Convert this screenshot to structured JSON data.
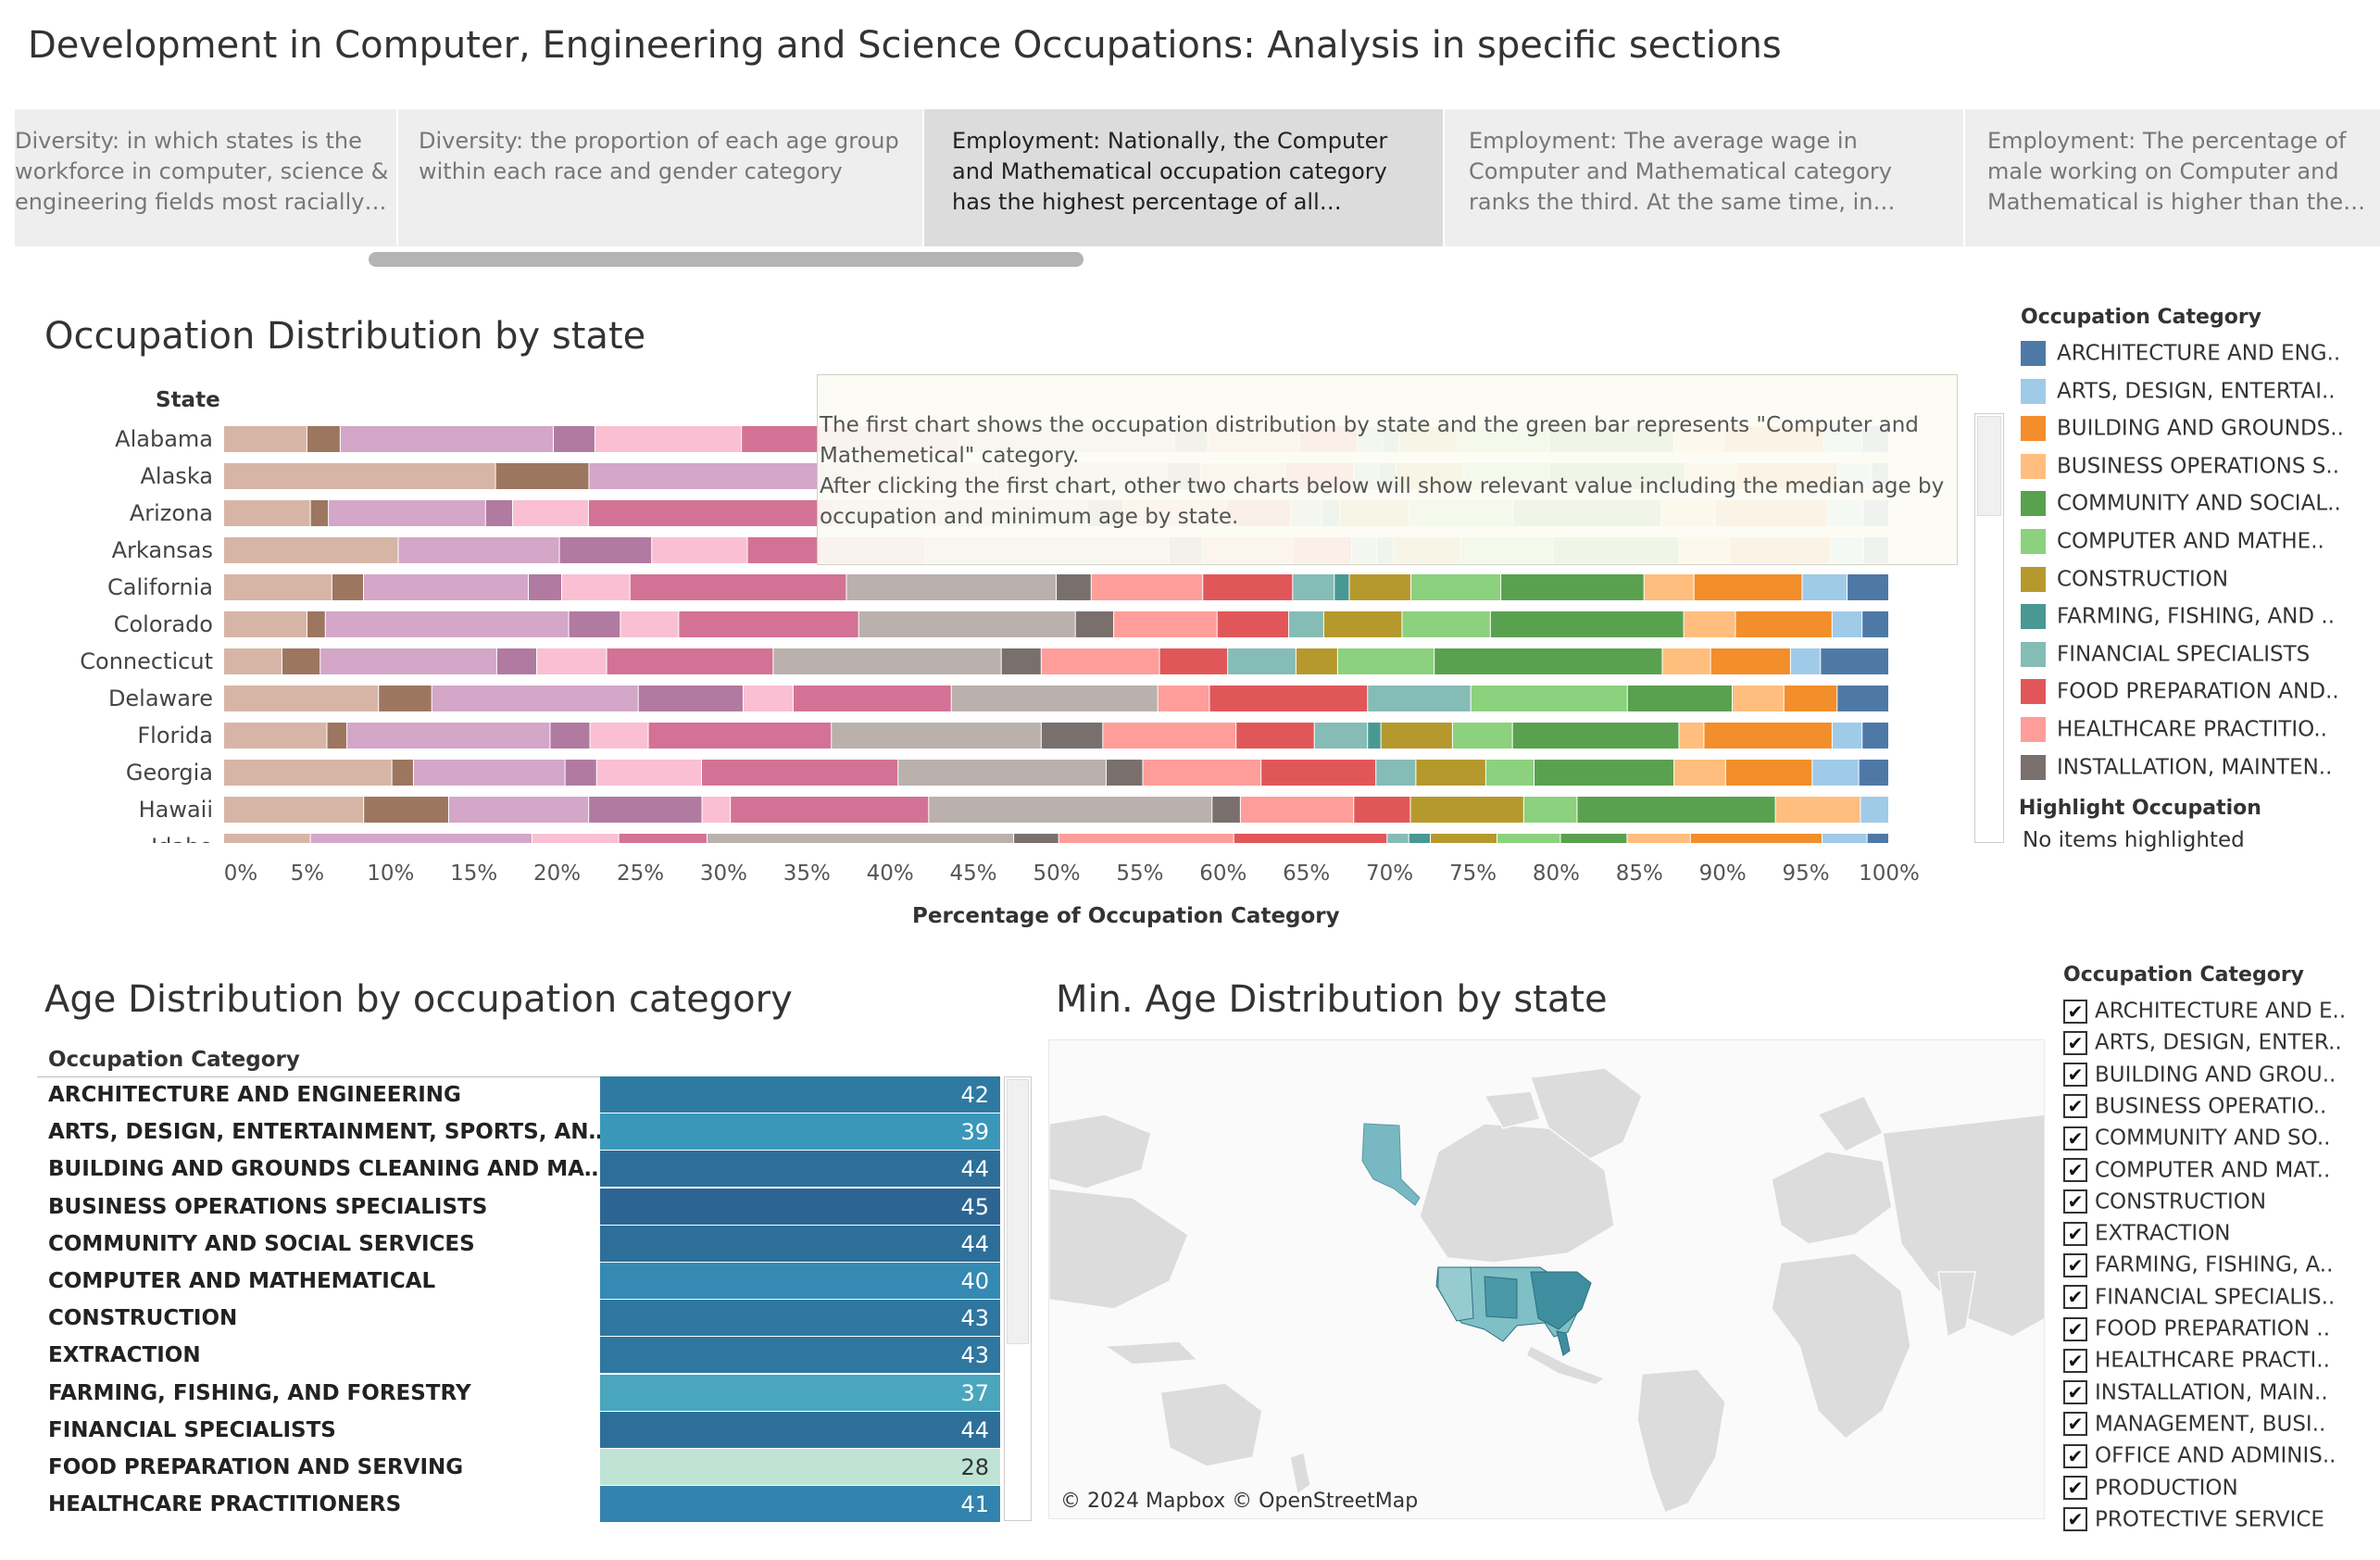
{
  "page_title": "Development in Computer, Engineering and Science Occupations: Analysis in specific sections",
  "tabs": [
    {
      "text": "Diversity: in which states is the workforce in computer, science & engineering fields most racially d..",
      "active": false
    },
    {
      "text": "Diversity: the proportion of each age group within each race and gender category",
      "active": false
    },
    {
      "text": "Employment: Nationally, the Computer and Mathematical occupation category has the highest percentage of all occupations in Del..",
      "active": true
    },
    {
      "text": "Employment:  The average wage in Computer and Mathematical category ranks the third. At the same time, in Computer and Mathema..",
      "active": false
    },
    {
      "text": "Employment: The percentage of male working on Computer and Mathematical is higher than the fem..",
      "active": false
    }
  ],
  "occupation_chart": {
    "title": "Occupation Distribution by state",
    "row_header": "State",
    "x_axis_title": "Percentage of Occupation Category",
    "tooltip": "The first chart shows the occupation distribution by state and the green bar represents \"Computer and Mathemetical\" category.\nAfter clicking the first chart, other two charts below will show relevant value including the median age by occupation  and minimum age by state.",
    "legend_title": "Occupation Category",
    "legend_items": [
      {
        "label": "ARCHITECTURE AND ENG..",
        "color": "#4e79a7"
      },
      {
        "label": "ARTS, DESIGN, ENTERTAI..",
        "color": "#a0cbe8"
      },
      {
        "label": "BUILDING AND GROUNDS..",
        "color": "#f28e2b"
      },
      {
        "label": "BUSINESS OPERATIONS S..",
        "color": "#ffbe7d"
      },
      {
        "label": "COMMUNITY AND SOCIAL..",
        "color": "#59a14f"
      },
      {
        "label": "COMPUTER AND MATHE..",
        "color": "#8cd17d"
      },
      {
        "label": "CONSTRUCTION",
        "color": "#b6992d"
      },
      {
        "label": "FARMING, FISHING, AND ..",
        "color": "#499894"
      },
      {
        "label": "FINANCIAL SPECIALISTS",
        "color": "#86bcb6"
      },
      {
        "label": "FOOD PREPARATION AND..",
        "color": "#e15759"
      },
      {
        "label": "HEALTHCARE PRACTITIO..",
        "color": "#ff9d9a"
      },
      {
        "label": "INSTALLATION, MAINTEN..",
        "color": "#79706e"
      }
    ],
    "highlight_title": "Highlight Occupation",
    "highlight_value": "No items highlighted"
  },
  "chart_data": [
    {
      "type": "bar",
      "orientation": "horizontal-stacked-100",
      "title": "Occupation Distribution by state",
      "ylabel": "State",
      "xlabel": "Percentage of Occupation Category",
      "xlim": [
        0,
        100
      ],
      "x_ticks": [
        "0%",
        "5%",
        "10%",
        "15%",
        "20%",
        "25%",
        "30%",
        "35%",
        "40%",
        "45%",
        "50%",
        "55%",
        "60%",
        "65%",
        "70%",
        "75%",
        "80%",
        "85%",
        "90%",
        "95%",
        "100%"
      ],
      "categories": [
        "Alabama",
        "Alaska",
        "Arizona",
        "Arkansas",
        "California",
        "Colorado",
        "Connecticut",
        "Delaware",
        "Florida",
        "Georgia",
        "Hawaii",
        "Idaho"
      ],
      "segment_colors": [
        "#d7b5a6",
        "#9d7660",
        "#d4a6c8",
        "#b07aa1",
        "#fabfd2",
        "#d37295",
        "#bab0ac",
        "#79706e",
        "#ff9d9a",
        "#e15759",
        "#86bcb6",
        "#499894",
        "#b6992d",
        "#8cd17d",
        "#59a14f",
        "#ffbe7d",
        "#f28e2b",
        "#a0cbe8",
        "#4e79a7"
      ],
      "rows": [
        [
          5.0,
          2.0,
          12.8,
          2.5,
          8.8,
          13.0,
          13.0,
          2.0,
          5.5,
          3.5,
          1.5,
          1.0,
          3.5,
          5.5,
          7.5,
          3.0,
          6.0,
          2.3,
          1.6
        ],
        [
          16.0,
          5.5,
          24.0,
          0,
          0,
          0,
          10.0,
          2.0,
          5.0,
          4.0,
          1.5,
          1.0,
          4.0,
          5.0,
          8.0,
          3.0,
          6.0,
          2.0,
          1.0
        ],
        [
          4.8,
          1.0,
          8.7,
          1.5,
          4.2,
          13.6,
          14.0,
          2.0,
          5.7,
          3.6,
          1.7,
          1.0,
          3.8,
          5.8,
          8.2,
          3.0,
          6.2,
          2.0,
          1.4
        ],
        [
          10.4,
          0,
          9.6,
          5.5,
          5.7,
          10.6,
          14.5,
          2.0,
          5.4,
          3.5,
          1.5,
          1.0,
          4.0,
          5.5,
          7.5,
          3.0,
          6.0,
          2.0,
          1.5
        ],
        [
          6.5,
          1.9,
          9.9,
          2.0,
          4.1,
          13.0,
          12.6,
          2.1,
          6.7,
          5.4,
          2.5,
          0.9,
          3.7,
          5.4,
          8.6,
          3.0,
          6.5,
          2.7,
          2.5
        ],
        [
          5.0,
          1.1,
          14.6,
          3.1,
          3.5,
          10.8,
          13.0,
          2.3,
          6.2,
          4.3,
          2.1,
          0,
          4.7,
          5.3,
          11.6,
          3.1,
          5.8,
          1.8,
          1.6
        ],
        [
          3.5,
          2.3,
          10.6,
          2.4,
          4.2,
          10.0,
          13.7,
          2.4,
          7.1,
          4.1,
          4.1,
          0,
          2.5,
          5.8,
          13.7,
          2.9,
          4.8,
          1.8,
          4.1
        ],
        [
          9.3,
          3.2,
          12.4,
          6.3,
          3.0,
          9.5,
          12.4,
          0,
          3.1,
          9.5,
          6.2,
          0,
          0,
          9.4,
          6.3,
          3.1,
          3.2,
          0,
          3.1
        ],
        [
          6.2,
          1.2,
          12.2,
          2.4,
          3.5,
          11.0,
          12.6,
          3.7,
          8.0,
          4.7,
          3.2,
          0.8,
          4.3,
          3.6,
          10.0,
          1.5,
          7.7,
          1.8,
          1.6
        ],
        [
          10.1,
          1.3,
          9.1,
          1.9,
          6.3,
          11.8,
          12.5,
          2.2,
          7.1,
          6.9,
          2.4,
          0,
          4.2,
          2.9,
          8.4,
          3.1,
          5.2,
          2.8,
          1.8
        ],
        [
          8.4,
          5.1,
          8.4,
          6.8,
          1.7,
          11.9,
          17.0,
          1.7,
          6.8,
          3.4,
          0,
          0,
          6.8,
          3.2,
          11.9,
          5.1,
          0,
          1.7,
          0
        ],
        [
          5.2,
          0,
          13.3,
          0,
          5.2,
          5.3,
          18.4,
          2.7,
          10.5,
          9.2,
          1.3,
          1.3,
          4.0,
          3.8,
          4.0,
          3.8,
          7.9,
          2.7,
          1.3
        ]
      ]
    },
    {
      "type": "table",
      "title": "Age Distribution by occupation category",
      "column_header": "Occupation Category",
      "categories": [
        "ARCHITECTURE AND ENGINEERING",
        "ARTS, DESIGN, ENTERTAINMENT, SPORTS, AND ME..",
        "BUILDING AND GROUNDS CLEANING AND MAINTEN..",
        "BUSINESS OPERATIONS SPECIALISTS",
        "COMMUNITY AND SOCIAL SERVICES",
        "COMPUTER AND MATHEMATICAL",
        "CONSTRUCTION",
        "EXTRACTION",
        "FARMING, FISHING, AND FORESTRY",
        "FINANCIAL SPECIALISTS",
        "FOOD PREPARATION AND SERVING",
        "HEALTHCARE PRACTITIONERS"
      ],
      "values": [
        42,
        39,
        44,
        45,
        44,
        40,
        43,
        43,
        37,
        44,
        28,
        41
      ]
    }
  ],
  "age_table": {
    "title": "Age Distribution by occupation category",
    "column_header": "Occupation Category",
    "rows": [
      {
        "label": "ARCHITECTURE AND ENGINEERING",
        "value": "42",
        "color": "#2f7aa3"
      },
      {
        "label": "ARTS, DESIGN, ENTERTAINMENT, SPORTS, AND ME..",
        "value": "39",
        "color": "#3a97b9"
      },
      {
        "label": "BUILDING AND GROUNDS CLEANING AND MAINTEN..",
        "value": "44",
        "color": "#2e6f9a"
      },
      {
        "label": "BUSINESS OPERATIONS SPECIALISTS",
        "value": "45",
        "color": "#2c6592"
      },
      {
        "label": "COMMUNITY AND SOCIAL SERVICES",
        "value": "44",
        "color": "#2e6f9a"
      },
      {
        "label": "COMPUTER AND MATHEMATICAL",
        "value": "40",
        "color": "#348ab2"
      },
      {
        "label": "CONSTRUCTION",
        "value": "43",
        "color": "#2f76a0"
      },
      {
        "label": "EXTRACTION",
        "value": "43",
        "color": "#2f76a0"
      },
      {
        "label": "FARMING, FISHING, AND FORESTRY",
        "value": "37",
        "color": "#4aa6bd"
      },
      {
        "label": "FINANCIAL SPECIALISTS",
        "value": "44",
        "color": "#2e6f9a"
      },
      {
        "label": "FOOD PREPARATION AND SERVING",
        "value": "28",
        "color": "#bfe4d6"
      },
      {
        "label": "HEALTHCARE PRACTITIONERS",
        "value": "41",
        "color": "#3283ad"
      }
    ]
  },
  "map_panel": {
    "title": "Min. Age Distribution by state",
    "attribution": "© 2024 Mapbox © OpenStreetMap",
    "filter_title": "Occupation Category",
    "filter_items": [
      {
        "label": "ARCHITECTURE AND E..",
        "checked": "✔"
      },
      {
        "label": "ARTS, DESIGN, ENTER..",
        "checked": "✔"
      },
      {
        "label": "BUILDING AND GROU..",
        "checked": "✔"
      },
      {
        "label": "BUSINESS OPERATIO..",
        "checked": "✔"
      },
      {
        "label": "COMMUNITY AND SO..",
        "checked": "✔"
      },
      {
        "label": "COMPUTER AND MAT..",
        "checked": "✔"
      },
      {
        "label": "CONSTRUCTION",
        "checked": "✔"
      },
      {
        "label": "EXTRACTION",
        "checked": "✔"
      },
      {
        "label": "FARMING, FISHING, A..",
        "checked": "✔"
      },
      {
        "label": "FINANCIAL SPECIALIS..",
        "checked": "✔"
      },
      {
        "label": "FOOD PREPARATION ..",
        "checked": "✔"
      },
      {
        "label": "HEALTHCARE PRACTI..",
        "checked": "✔"
      },
      {
        "label": "INSTALLATION, MAIN..",
        "checked": "✔"
      },
      {
        "label": "MANAGEMENT, BUSI..",
        "checked": "✔"
      },
      {
        "label": "OFFICE AND ADMINIS..",
        "checked": "✔"
      },
      {
        "label": "PRODUCTION",
        "checked": "✔"
      },
      {
        "label": "PROTECTIVE SERVICE",
        "checked": "✔"
      }
    ]
  }
}
